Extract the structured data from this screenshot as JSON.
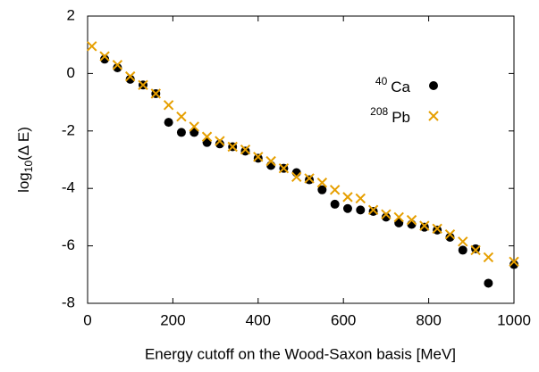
{
  "chart_data": {
    "type": "scatter",
    "xlabel": "Energy cutoff on the Wood-Saxon basis [MeV]",
    "ylabel": {
      "prefix": "log",
      "subscript": "10",
      "suffix": "(Δ E)"
    },
    "xlim": [
      0,
      1000
    ],
    "xticks": [
      0,
      200,
      400,
      600,
      800,
      1000
    ],
    "ylim": [
      -8,
      2
    ],
    "yticks": [
      -8,
      -6,
      -4,
      -2,
      0,
      2
    ],
    "legend": "upper right",
    "series": [
      {
        "name": "Ca",
        "superscript": "40",
        "marker": "circle",
        "color": "#000000",
        "x": [
          40,
          70,
          100,
          130,
          160,
          190,
          220,
          250,
          280,
          310,
          340,
          370,
          400,
          430,
          460,
          490,
          520,
          550,
          580,
          610,
          640,
          670,
          700,
          730,
          760,
          790,
          820,
          850,
          880,
          910,
          940,
          1000
        ],
        "values": [
          0.5,
          0.2,
          -0.2,
          -0.4,
          -0.7,
          -1.7,
          -2.05,
          -2.05,
          -2.4,
          -2.45,
          -2.55,
          -2.7,
          -2.95,
          -3.2,
          -3.3,
          -3.45,
          -3.7,
          -4.05,
          -4.55,
          -4.7,
          -4.75,
          -4.8,
          -5.0,
          -5.2,
          -5.25,
          -5.35,
          -5.45,
          -5.7,
          -6.15,
          -6.1,
          -7.3,
          -6.65
        ]
      },
      {
        "name": "Pb",
        "superscript": "208",
        "marker": "x",
        "color": "#e69f00",
        "x": [
          10,
          40,
          70,
          100,
          130,
          160,
          190,
          220,
          250,
          280,
          310,
          340,
          370,
          400,
          430,
          460,
          490,
          520,
          550,
          580,
          610,
          640,
          670,
          700,
          730,
          760,
          790,
          820,
          850,
          880,
          910,
          940,
          1000
        ],
        "values": [
          0.95,
          0.6,
          0.3,
          -0.1,
          -0.4,
          -0.7,
          -1.1,
          -1.5,
          -1.85,
          -2.2,
          -2.35,
          -2.55,
          -2.65,
          -2.9,
          -3.05,
          -3.3,
          -3.6,
          -3.65,
          -3.8,
          -4.05,
          -4.3,
          -4.35,
          -4.75,
          -4.9,
          -5.0,
          -5.1,
          -5.3,
          -5.4,
          -5.6,
          -5.85,
          -6.15,
          -6.4,
          -6.55
        ]
      }
    ]
  }
}
